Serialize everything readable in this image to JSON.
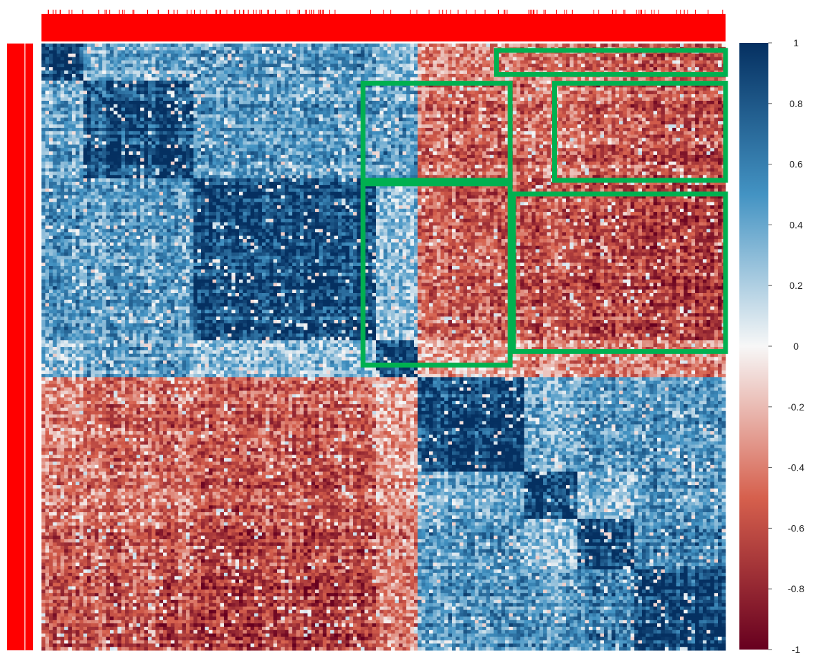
{
  "chart_data": {
    "type": "heatmap",
    "title": "",
    "xlabel": "",
    "ylabel": "",
    "value_range": [
      -1,
      1
    ],
    "colorbar": {
      "ticks": [
        1,
        0.8,
        0.6,
        0.4,
        0.2,
        0,
        -0.2,
        -0.4,
        -0.6,
        -0.8,
        -1
      ],
      "tick_labels": [
        "1",
        "0.8",
        "0.6",
        "0.4",
        "0.2",
        "0",
        "-0.2",
        "-0.4",
        "-0.6",
        "-0.8",
        "-1"
      ],
      "colors": {
        "-1": "#67001f",
        "-0.5": "#d6604d",
        "0": "#f7f7f7",
        "0.5": "#4393c3",
        "1": "#053061"
      }
    },
    "block_order": [
      "B1",
      "B2",
      "B3",
      "B4",
      "B5",
      "B6",
      "B7",
      "B8"
    ],
    "block_fractions": [
      0.063,
      0.157,
      0.27,
      0.06,
      0.153,
      0.078,
      0.085,
      0.134
    ],
    "block_correlation": [
      [
        1.0,
        0.45,
        0.55,
        0.35,
        -0.4,
        -0.5,
        -0.55,
        -0.6
      ],
      [
        0.45,
        1.0,
        0.55,
        0.55,
        -0.55,
        -0.5,
        -0.6,
        -0.65
      ],
      [
        0.55,
        0.55,
        1.0,
        0.35,
        -0.6,
        -0.65,
        -0.7,
        -0.75
      ],
      [
        0.35,
        0.55,
        0.35,
        1.0,
        -0.3,
        -0.4,
        -0.5,
        -0.45
      ],
      [
        -0.4,
        -0.55,
        -0.6,
        -0.3,
        1.0,
        0.45,
        0.55,
        0.55
      ],
      [
        -0.5,
        -0.5,
        -0.65,
        -0.4,
        0.45,
        1.0,
        0.35,
        0.55
      ],
      [
        -0.55,
        -0.6,
        -0.7,
        -0.5,
        0.55,
        0.35,
        1.0,
        0.65
      ],
      [
        -0.6,
        -0.65,
        -0.75,
        -0.45,
        0.55,
        0.55,
        0.65,
        1.0
      ]
    ],
    "highlight_boxes": [
      {
        "rows": [
          0.01,
          0.045
        ],
        "cols": [
          0.665,
          1.0
        ]
      },
      {
        "rows": [
          0.058,
          0.2
        ],
        "cols": [
          0.47,
          0.685
        ]
      },
      {
        "rows": [
          0.058,
          0.2
        ],
        "cols": [
          0.75,
          1.0
        ]
      },
      {
        "rows": [
          0.205,
          0.47
        ],
        "cols": [
          0.47,
          0.685
        ]
      },
      {
        "rows": [
          0.22,
          0.45
        ],
        "cols": [
          0.69,
          1.0
        ]
      }
    ],
    "highlight_color": "#00b050",
    "label_color": "#ff0000",
    "grid": false,
    "legend_placement": "right"
  }
}
